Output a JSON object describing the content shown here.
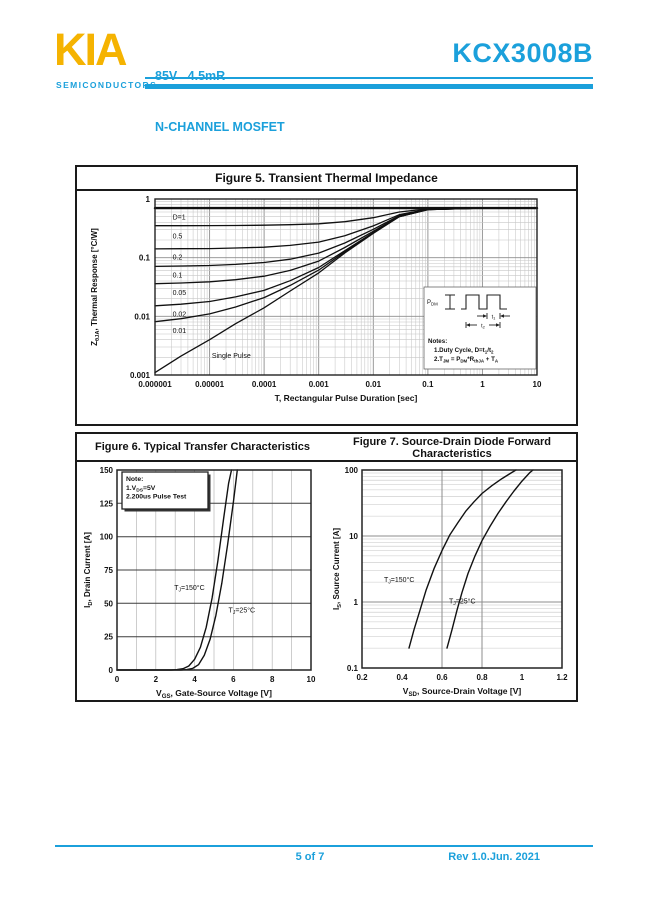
{
  "page": {
    "background": "#ffffff"
  },
  "header": {
    "logo_text": "KIA",
    "logo_sub": "SEMICONDUCTORS",
    "subtitle_line1": "85V   4.5mR",
    "subtitle_line2": "N-CHANNEL MOSFET",
    "part_number": "KCX3008B",
    "accent_color": "#1BA0DB",
    "logo_color": "#F5B301"
  },
  "footer": {
    "page_indicator": "5 of 7",
    "revision": "Rev 1.0.Jun. 2021"
  },
  "figure5": {
    "title": "Figure 5. Transient Thermal Impedance"
  },
  "figure6": {
    "title": "Figure 6. Typical Transfer Characteristics"
  },
  "figure7": {
    "title_line1": "Figure 7. Source-Drain Diode Forward",
    "title_line2": "Characteristics"
  },
  "chart_data": [
    {
      "figure": "Figure 5",
      "type": "line",
      "title": "Figure 5. Transient Thermal Impedance",
      "x_scale": "log",
      "y_scale": "log",
      "xlim": [
        1e-06,
        10
      ],
      "ylim": [
        0.001,
        1
      ],
      "grid": true,
      "xlabel": "T, Rectangular Pulse Duration [sec]",
      "ylabel": "Z0JA, Thermal Response [°C/W]",
      "ylabel_segments": [
        {
          "t": "Z"
        },
        {
          "t": "θJA",
          "sub": true
        },
        {
          "t": ", Thermal Response [°C/W]"
        }
      ],
      "x_tick_labels": [
        "0.000001",
        "0.00001",
        "0.0001",
        "0.001",
        "0.01",
        "0.1",
        "1",
        "10"
      ],
      "y_tick_labels": [
        "1",
        "0.1",
        "0.01",
        "0.001"
      ],
      "x": [
        1e-06,
        3e-06,
        1e-05,
        3e-05,
        0.0001,
        0.0003,
        0.001,
        0.003,
        0.01,
        0.03,
        0.1,
        1,
        10
      ],
      "series": [
        {
          "name": "D=1",
          "width": 2.4,
          "label_xy": [
            2.1e-06,
            0.5
          ],
          "values": [
            0.7,
            0.7,
            0.7,
            0.7,
            0.7,
            0.7,
            0.7,
            0.7,
            0.7,
            0.7,
            0.7,
            0.7,
            0.7
          ]
        },
        {
          "name": "0.5",
          "width": 1.3,
          "label_xy": [
            2.1e-06,
            0.24
          ],
          "values": [
            0.351,
            0.351,
            0.352,
            0.354,
            0.357,
            0.364,
            0.378,
            0.41,
            0.48,
            0.6,
            0.68,
            0.7,
            0.7
          ]
        },
        {
          "name": "0.2",
          "width": 1.3,
          "label_xy": [
            2.1e-06,
            0.105
          ],
          "values": [
            0.141,
            0.142,
            0.143,
            0.146,
            0.151,
            0.162,
            0.184,
            0.236,
            0.348,
            0.54,
            0.668,
            0.7,
            0.7
          ]
        },
        {
          "name": "0.1",
          "width": 1.3,
          "label_xy": [
            2.1e-06,
            0.052
          ],
          "values": [
            0.071,
            0.072,
            0.0736,
            0.0768,
            0.0826,
            0.0943,
            0.1195,
            0.178,
            0.304,
            0.52,
            0.664,
            0.7,
            0.7
          ]
        },
        {
          "name": "0.05",
          "width": 1.3,
          "label_xy": [
            2.1e-06,
            0.026
          ],
          "values": [
            0.036,
            0.037,
            0.0388,
            0.0421,
            0.0483,
            0.0607,
            0.0873,
            0.149,
            0.282,
            0.51,
            0.662,
            0.7,
            0.7
          ]
        },
        {
          "name": "0.02",
          "width": 1.3,
          "label_xy": [
            2.1e-06,
            0.0112
          ],
          "values": [
            0.0151,
            0.0161,
            0.0179,
            0.0214,
            0.0277,
            0.0405,
            0.0679,
            0.1316,
            0.2688,
            0.504,
            0.6608,
            0.7,
            0.7
          ]
        },
        {
          "name": "0.01",
          "width": 1.3,
          "label_xy": [
            2.1e-06,
            0.0058
          ],
          "values": [
            0.0081,
            0.0091,
            0.011,
            0.0144,
            0.0209,
            0.0337,
            0.0615,
            0.1258,
            0.2644,
            0.502,
            0.6604,
            0.7,
            0.7
          ]
        },
        {
          "name": "Single Pulse",
          "width": 1.3,
          "label_xy": [
            1.1e-05,
            0.0022
          ],
          "values": [
            0.0011,
            0.0021,
            0.004,
            0.0075,
            0.014,
            0.027,
            0.055,
            0.12,
            0.26,
            0.5,
            0.66,
            0.7,
            0.7
          ]
        }
      ],
      "inset": {
        "pdm_segments": [
          {
            "t": "P"
          },
          {
            "t": "DM",
            "sub": true
          }
        ],
        "t1_segments": [
          {
            "t": "t"
          },
          {
            "t": "1",
            "sub": true
          }
        ],
        "t2_segments": [
          {
            "t": "t"
          },
          {
            "t": "2",
            "sub": true
          }
        ],
        "notes_title": "Notes:",
        "note1": "1.Duty Cycle, D=t1/t2",
        "note1_segments": [
          {
            "t": "1.Duty Cycle, D=t"
          },
          {
            "t": "1",
            "sub": true
          },
          {
            "t": "/t"
          },
          {
            "t": "2",
            "sub": true
          }
        ],
        "note2": "2.TJM = PDM*RthJA + TA",
        "note2_segments": [
          {
            "t": "2.T"
          },
          {
            "t": "JM",
            "sub": true
          },
          {
            "t": " = P"
          },
          {
            "t": "DM",
            "sub": true
          },
          {
            "t": "*R"
          },
          {
            "t": "thJA",
            "sub": true
          },
          {
            "t": " + T"
          },
          {
            "t": "A",
            "sub": true
          }
        ]
      }
    },
    {
      "figure": "Figure 6",
      "type": "line",
      "title": "Figure 6. Typical Transfer Characteristics",
      "x_scale": "linear",
      "y_scale": "linear",
      "xlim": [
        0,
        10
      ],
      "ylim": [
        0,
        150
      ],
      "grid": true,
      "x_ticks": [
        0,
        2,
        4,
        6,
        8,
        10
      ],
      "y_ticks": [
        0,
        25,
        50,
        75,
        100,
        125,
        150
      ],
      "xlabel": "VGS, Gate-Source Voltage [V]",
      "xlabel_segments": [
        {
          "t": "V"
        },
        {
          "t": "GS",
          "sub": true
        },
        {
          "t": ", Gate-Source Voltage [V]"
        }
      ],
      "ylabel": "ID, Drain Current [A]",
      "ylabel_segments": [
        {
          "t": "I"
        },
        {
          "t": "D",
          "sub": true
        },
        {
          "t": ", Drain Current [A]"
        }
      ],
      "series": [
        {
          "name": "TJ=150°C",
          "label_segments": [
            {
              "t": "T"
            },
            {
              "t": "J",
              "sub": true
            },
            {
              "t": "=150°C"
            }
          ],
          "label_xy": [
            2.95,
            60
          ],
          "points": [
            [
              0,
              0
            ],
            [
              2.8,
              0
            ],
            [
              3.1,
              0.3
            ],
            [
              3.4,
              1
            ],
            [
              3.7,
              3
            ],
            [
              4.0,
              8
            ],
            [
              4.3,
              17
            ],
            [
              4.6,
              32
            ],
            [
              4.9,
              54
            ],
            [
              5.2,
              82
            ],
            [
              5.5,
              114
            ],
            [
              5.75,
              140
            ],
            [
              5.9,
              150
            ]
          ]
        },
        {
          "name": "TJ=25°C",
          "label_segments": [
            {
              "t": "T"
            },
            {
              "t": "J",
              "sub": true
            },
            {
              "t": "=25°C"
            }
          ],
          "label_xy": [
            5.75,
            43
          ],
          "points": [
            [
              0,
              0
            ],
            [
              3.3,
              0
            ],
            [
              3.6,
              0.3
            ],
            [
              3.9,
              1.2
            ],
            [
              4.2,
              4
            ],
            [
              4.5,
              11
            ],
            [
              4.8,
              23
            ],
            [
              5.1,
              41
            ],
            [
              5.4,
              65
            ],
            [
              5.7,
              94
            ],
            [
              6.0,
              126
            ],
            [
              6.2,
              150
            ]
          ]
        }
      ],
      "note": {
        "title": "Note:",
        "line1": "1.VDS=5V",
        "line1_segments": [
          {
            "t": "1.V"
          },
          {
            "t": "DS",
            "sub": true
          },
          {
            "t": "=5V"
          }
        ],
        "line2": "2.200us Pulse Test"
      }
    },
    {
      "figure": "Figure 7",
      "type": "line",
      "title": "Figure 7. Source-Drain Diode Forward Characteristics",
      "x_scale": "linear",
      "y_scale": "log",
      "xlim": [
        0.2,
        1.2
      ],
      "ylim": [
        0.1,
        100
      ],
      "grid": true,
      "x_tick_labels": [
        "0.2",
        "0.4",
        "0.6",
        "0.8",
        "1",
        "1.2"
      ],
      "y_tick_labels": [
        "100",
        "10",
        "1",
        "0.1"
      ],
      "x_gridlines": [
        0.6,
        0.8
      ],
      "xlabel": "VSD, Source-Drain Voltage [V]",
      "xlabel_segments": [
        {
          "t": "V"
        },
        {
          "t": "SD",
          "sub": true
        },
        {
          "t": ", Source-Drain Voltage [V]"
        }
      ],
      "ylabel": "IS, Source Current [A]",
      "ylabel_segments": [
        {
          "t": "I"
        },
        {
          "t": "S",
          "sub": true
        },
        {
          "t": ", Source Current [A]"
        }
      ],
      "series": [
        {
          "name": "TJ=150°C",
          "label_segments": [
            {
              "t": "T"
            },
            {
              "t": "J",
              "sub": true
            },
            {
              "t": "=150°C"
            }
          ],
          "label_xy": [
            0.31,
            2.0
          ],
          "points": [
            [
              0.435,
              0.2
            ],
            [
              0.46,
              0.38
            ],
            [
              0.49,
              0.75
            ],
            [
              0.52,
              1.5
            ],
            [
              0.56,
              3.2
            ],
            [
              0.6,
              6
            ],
            [
              0.64,
              10.5
            ],
            [
              0.68,
              16
            ],
            [
              0.72,
              24
            ],
            [
              0.76,
              33
            ],
            [
              0.8,
              44
            ],
            [
              0.85,
              58
            ],
            [
              0.9,
              74
            ],
            [
              0.95,
              92
            ],
            [
              0.97,
              100
            ]
          ]
        },
        {
          "name": "TJ=25°C",
          "label_segments": [
            {
              "t": "T"
            },
            {
              "t": "J",
              "sub": true
            },
            {
              "t": "=25°C"
            }
          ],
          "label_xy": [
            0.635,
            0.95
          ],
          "points": [
            [
              0.625,
              0.2
            ],
            [
              0.65,
              0.38
            ],
            [
              0.675,
              0.75
            ],
            [
              0.7,
              1.4
            ],
            [
              0.73,
              2.7
            ],
            [
              0.765,
              5
            ],
            [
              0.8,
              8.5
            ],
            [
              0.84,
              14
            ],
            [
              0.88,
              22
            ],
            [
              0.92,
              33
            ],
            [
              0.96,
              48
            ],
            [
              1.0,
              68
            ],
            [
              1.04,
              92
            ],
            [
              1.055,
              100
            ]
          ]
        }
      ]
    }
  ]
}
